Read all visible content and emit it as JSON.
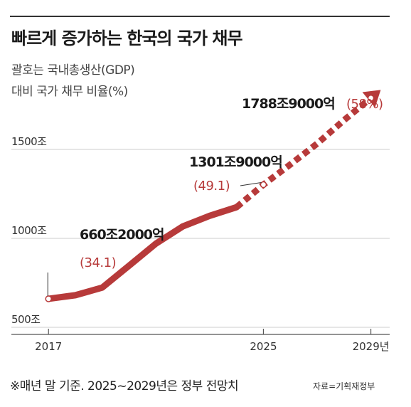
{
  "header": {
    "title": "빠르게 증가하는 한국의 국가 채무",
    "subtitle_line1": "괄호는 국내총생산(GDP)",
    "subtitle_line2": "대비 국가 채무 비율(%)"
  },
  "footer": {
    "note": "※매년 말 기준. 2025~2029년은 정부 전망치",
    "source": "자료=기획재정부"
  },
  "colors": {
    "accent": "#b73a3a",
    "line": "#b73a3a",
    "label": "#b73a3a",
    "grid": "#cccccc"
  },
  "chart_data": {
    "type": "line",
    "title": "빠르게 증가하는 한국의 국가 채무",
    "ylim": [
      460,
      1900
    ],
    "y_ticks": [
      {
        "value": 500,
        "label": "500조"
      },
      {
        "value": 1000,
        "label": "1000조"
      },
      {
        "value": 1500,
        "label": "1500조"
      }
    ],
    "x_ticks": [
      {
        "value": 2017,
        "label": "2017"
      },
      {
        "value": 2025,
        "label": "2025"
      },
      {
        "value": 2029,
        "label": "2029년"
      }
    ],
    "xlim": [
      2016.2,
      2029.7
    ],
    "series": [
      {
        "points": [
          {
            "x": 2017,
            "y": 660.2,
            "projected": false
          },
          {
            "x": 2018,
            "y": 680.5,
            "projected": false
          },
          {
            "x": 2019,
            "y": 723.2,
            "projected": false
          },
          {
            "x": 2020,
            "y": 846.6,
            "projected": false
          },
          {
            "x": 2021,
            "y": 970.7,
            "projected": false
          },
          {
            "x": 2022,
            "y": 1067.4,
            "projected": false
          },
          {
            "x": 2023,
            "y": 1126.7,
            "projected": false
          },
          {
            "x": 2024,
            "y": 1175.2,
            "projected": false
          },
          {
            "x": 2025,
            "y": 1301.9,
            "projected": true
          },
          {
            "x": 2026,
            "y": 1415.2,
            "projected": true
          },
          {
            "x": 2027,
            "y": 1532.5,
            "projected": true
          },
          {
            "x": 2028,
            "y": 1664.3,
            "projected": true
          },
          {
            "x": 2029,
            "y": 1788.9,
            "projected": true
          }
        ]
      }
    ],
    "annotations": [
      {
        "year": 2017,
        "amount": "660조2000억",
        "ratio": "(34.1)"
      },
      {
        "year": 2025,
        "amount": "1301조9000억",
        "ratio": "(49.1)"
      },
      {
        "year": 2029,
        "amount": "1788조9000억",
        "ratio": "(58%)"
      }
    ]
  }
}
